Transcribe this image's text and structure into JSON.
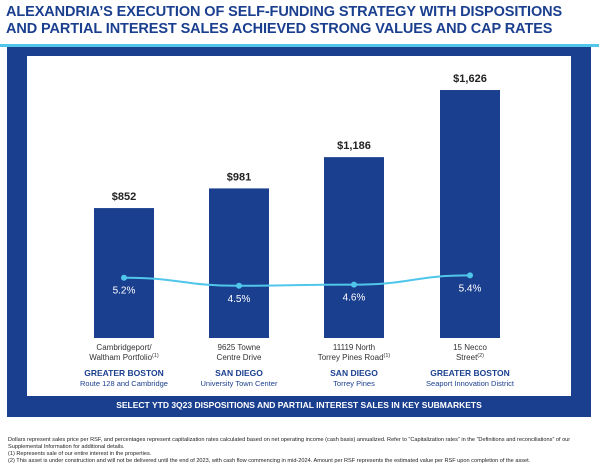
{
  "title": {
    "line1": "ALEXANDRIA’S EXECUTION OF SELF-FUNDING STRATEGY WITH DISPOSITIONS",
    "line2": "AND PARTIAL INTEREST SALES ACHIEVED STRONG VALUES AND CAP RATES"
  },
  "colors": {
    "title": "#1b3f8f",
    "bar": "#1b3f8f",
    "line": "#4fc6ea",
    "accent_rule": "#4fc6ea"
  },
  "chart_data": {
    "type": "bar",
    "categories": [
      {
        "property": [
          "Cambridgeport/",
          "Waltham Portfolio"
        ],
        "superscript": "(1)",
        "market": "GREATER BOSTON",
        "submarket": "Route 128 and Cambridge"
      },
      {
        "property": [
          "9625 Towne",
          "Centre Drive"
        ],
        "superscript": "",
        "market": "SAN DIEGO",
        "submarket": "University Town Center"
      },
      {
        "property": [
          "11119 North",
          "Torrey Pines Road"
        ],
        "superscript": "(1)",
        "market": "SAN DIEGO",
        "submarket": "Torrey Pines"
      },
      {
        "property": [
          "15 Necco",
          "Street"
        ],
        "superscript": "(2)",
        "market": "GREATER BOSTON",
        "submarket": "Seaport Innovation District"
      }
    ],
    "series": [
      {
        "values": [
          852,
          981,
          1186,
          1626
        ],
        "labels": [
          "$852",
          "$981",
          "$1,186",
          "$1,626"
        ]
      },
      {
        "values": [
          5.2,
          4.5,
          4.6,
          5.4
        ],
        "labels": [
          "5.2%",
          "4.5%",
          "4.6%",
          "5.4%"
        ]
      }
    ],
    "xlabel": "SELECT YTD 3Q23 DISPOSITIONS AND PARTIAL INTEREST SALES IN KEY SUBMARKETS",
    "ylabel": "",
    "grid": false
  },
  "footnotes": [
    "Dollars represent sales price per RSF, and percentages represent capitalization rates calculated based on net operating income (cash basis) annualized. Refer to “Capitalization rates” in the “Definitions and reconciliations” of our",
    "Supplemental Information for additional details.",
    "(1)     Represents sale of our entire interest in the properties.",
    "(2)     This asset is under construction and will not be delivered until the end of 2023, with cash flow commencing in mid-2024. Amount per RSF represents the estimated value per RSF upon completion of the asset."
  ]
}
